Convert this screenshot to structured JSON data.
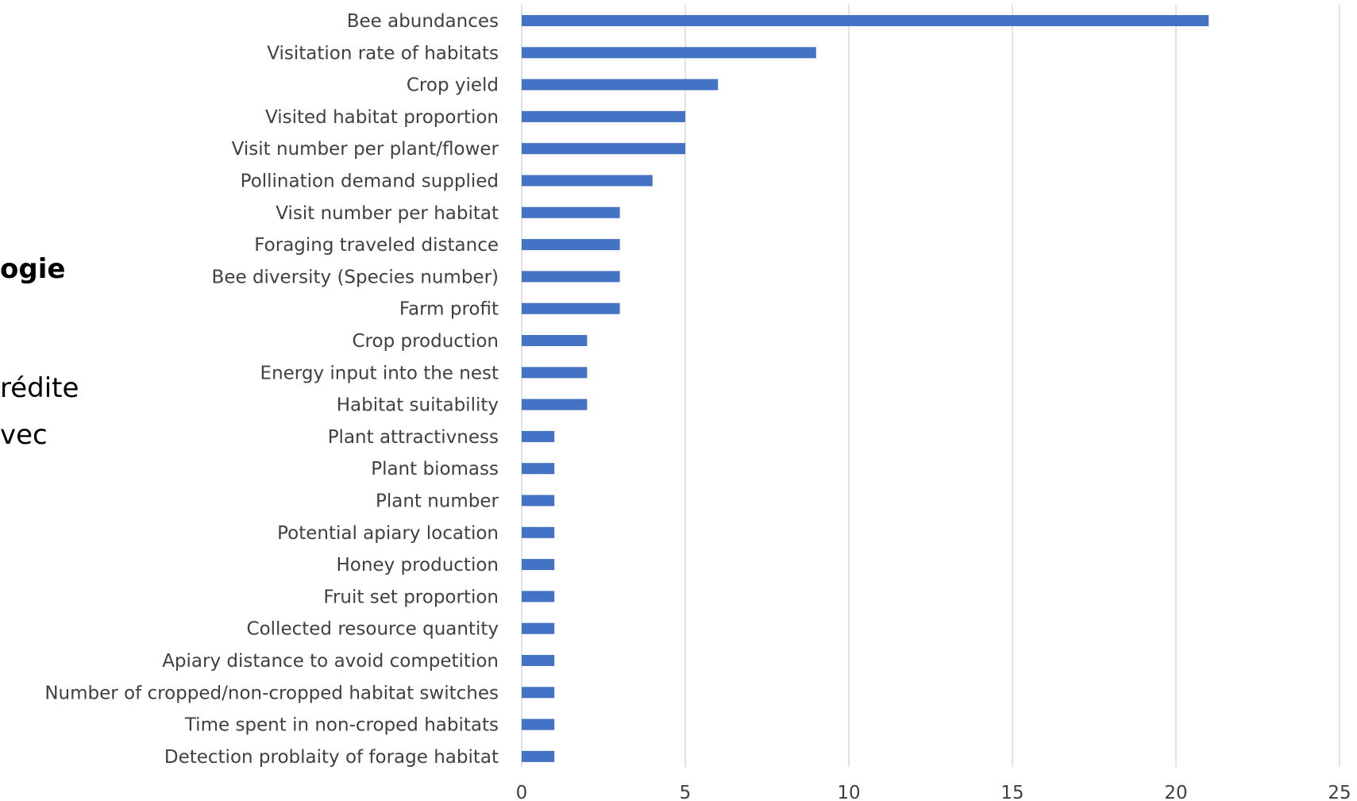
{
  "side_text": {
    "line1": "ogie",
    "line2": "rédite",
    "line3": "vec"
  },
  "colors": {
    "bar": "#4472C4",
    "grid": "#D9D9D9",
    "label": "#404040"
  },
  "chart_data": {
    "type": "bar",
    "orientation": "horizontal",
    "title": "",
    "xlabel": "",
    "ylabel": "",
    "xlim": [
      0,
      25
    ],
    "xticks": [
      0,
      5,
      10,
      15,
      20,
      25
    ],
    "grid": "vertical",
    "legend": "none",
    "categories": [
      "Bee abundances",
      "Visitation rate of habitats",
      "Crop yield",
      "Visited habitat proportion",
      "Visit number per plant/flower",
      "Pollination demand supplied",
      "Visit number per habitat",
      "Foraging traveled distance",
      "Bee diversity (Species number)",
      "Farm profit",
      "Crop production",
      "Energy input into the nest",
      "Habitat suitability",
      "Plant attractivness",
      "Plant biomass",
      "Plant number",
      "Potential apiary location",
      "Honey production",
      "Fruit set proportion",
      "Collected resource quantity",
      "Apiary distance to avoid competition",
      "Number of cropped/non-cropped habitat switches",
      "Time spent in non-croped habitats",
      "Detection problaity of forage habitat"
    ],
    "values": [
      21,
      9,
      6,
      5,
      5,
      4,
      3,
      3,
      3,
      3,
      2,
      2,
      2,
      1,
      1,
      1,
      1,
      1,
      1,
      1,
      1,
      1,
      1,
      1
    ]
  }
}
